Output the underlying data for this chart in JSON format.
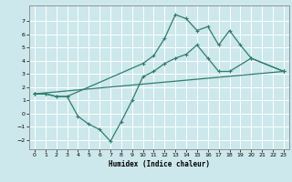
{
  "title": "",
  "xlabel": "Humidex (Indice chaleur)",
  "bg_color": "#cce8ec",
  "grid_color": "#ffffff",
  "line_color": "#2e7d6e",
  "xlim": [
    -0.5,
    23.5
  ],
  "ylim": [
    -2.7,
    8.2
  ],
  "xticks": [
    0,
    1,
    2,
    3,
    4,
    5,
    6,
    7,
    8,
    9,
    10,
    11,
    12,
    13,
    14,
    15,
    16,
    17,
    18,
    19,
    20,
    21,
    22,
    23
  ],
  "yticks": [
    -2,
    -1,
    0,
    1,
    2,
    3,
    4,
    5,
    6,
    7
  ],
  "curve1_x": [
    0,
    1,
    2,
    3,
    10,
    11,
    12,
    13,
    14,
    15,
    16,
    17,
    18,
    19,
    20,
    23
  ],
  "curve1_y": [
    1.5,
    1.5,
    1.3,
    1.3,
    3.8,
    4.4,
    5.7,
    7.5,
    7.2,
    6.3,
    6.6,
    5.2,
    6.3,
    5.2,
    4.2,
    3.2
  ],
  "curve2_x": [
    0,
    1,
    2,
    3,
    4,
    5,
    6,
    7,
    8,
    9,
    10,
    11,
    12,
    13,
    14,
    15,
    16,
    17,
    18,
    20,
    23
  ],
  "curve2_y": [
    1.5,
    1.5,
    1.3,
    1.3,
    -0.2,
    -0.8,
    -1.2,
    -2.1,
    -0.6,
    1.0,
    2.8,
    3.2,
    3.8,
    4.2,
    4.5,
    5.2,
    4.2,
    3.2,
    3.2,
    4.2,
    3.2
  ],
  "curve3_x": [
    0,
    23
  ],
  "curve3_y": [
    1.5,
    3.2
  ]
}
